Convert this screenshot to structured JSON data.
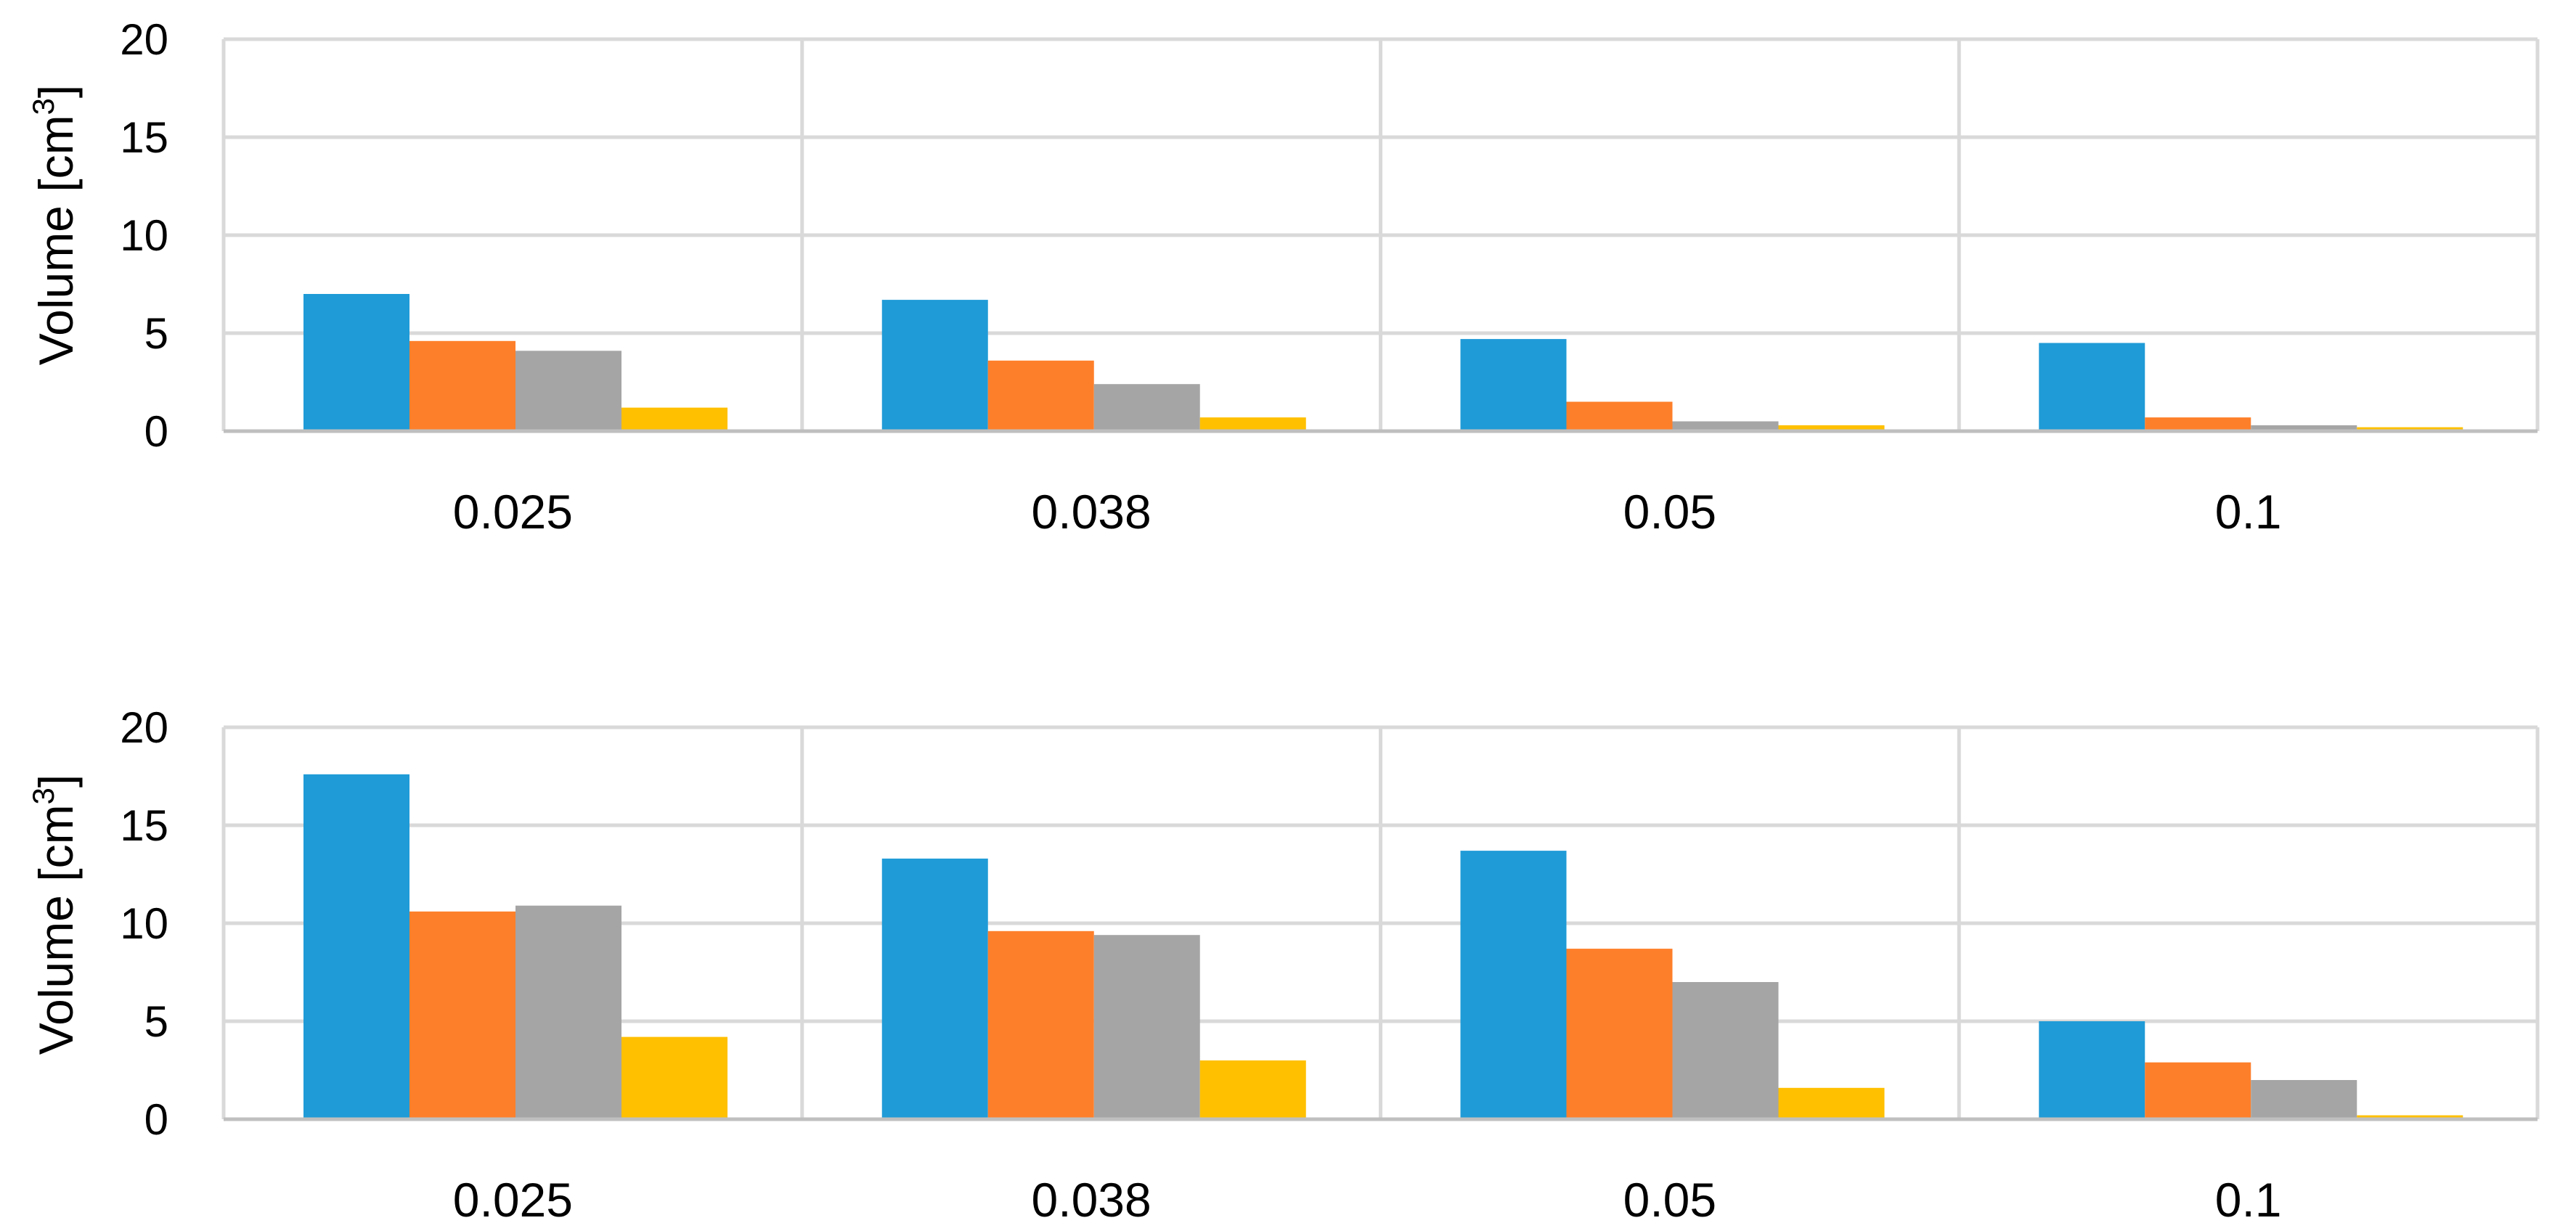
{
  "chart_data": [
    {
      "type": "bar",
      "categories": [
        "0.025",
        "0.038",
        "0.05",
        "0.1"
      ],
      "ylabel": "Volume [cm",
      "ylabel_sup": "3",
      "ylabel_close": "]",
      "ylim": [
        0,
        20
      ],
      "yticks": [
        "0",
        "5",
        "10",
        "15",
        "20"
      ],
      "grid": true,
      "legend": "none",
      "series": [
        {
          "color": "#1f9bd7",
          "values": [
            7.0,
            6.7,
            4.7,
            4.5
          ]
        },
        {
          "color": "#fe7f2a",
          "values": [
            4.6,
            3.6,
            1.5,
            0.7
          ]
        },
        {
          "color": "#a5a5a5",
          "values": [
            4.1,
            2.4,
            0.5,
            0.3
          ]
        },
        {
          "color": "#ffc000",
          "values": [
            1.2,
            0.7,
            0.3,
            0.2
          ]
        }
      ]
    },
    {
      "type": "bar",
      "categories": [
        "0.025",
        "0.038",
        "0.05",
        "0.1"
      ],
      "ylabel": "Volume [cm",
      "ylabel_sup": "3",
      "ylabel_close": "]",
      "ylim": [
        0,
        20
      ],
      "yticks": [
        "0",
        "5",
        "10",
        "15",
        "20"
      ],
      "grid": true,
      "legend": "none",
      "series": [
        {
          "color": "#1f9bd7",
          "values": [
            17.6,
            13.3,
            13.7,
            5.0
          ]
        },
        {
          "color": "#fe7f2a",
          "values": [
            10.6,
            9.6,
            8.7,
            2.9
          ]
        },
        {
          "color": "#a5a5a5",
          "values": [
            10.9,
            9.4,
            7.0,
            2.0
          ]
        },
        {
          "color": "#ffc000",
          "values": [
            4.2,
            3.0,
            1.6,
            0.2
          ]
        }
      ]
    }
  ]
}
